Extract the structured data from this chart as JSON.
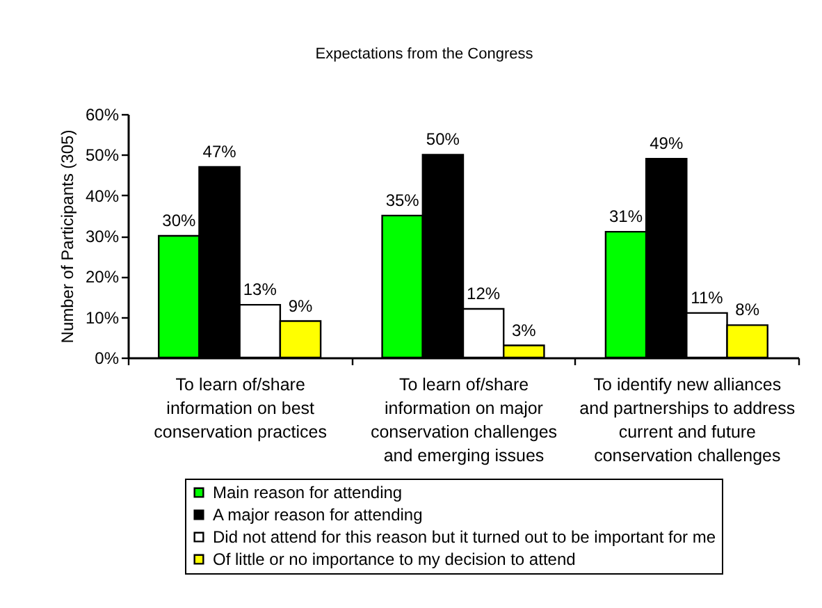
{
  "chart_data": {
    "type": "bar",
    "title": "Expectations from the Congress",
    "ylabel": "Number of Participants (305)",
    "categories": [
      "To learn of/share\ninformation on best\nconservation practices",
      "To learn of/share\ninformation on major\nconservation challenges\nand emerging issues",
      "To identify new alliances\nand partnerships to address\ncurrent and future\nconservation challenges"
    ],
    "series": [
      {
        "name": "Main reason for attending",
        "color": "#00ff00",
        "values": [
          30,
          35,
          31
        ],
        "value_labels": [
          "30%",
          "35%",
          "31%"
        ]
      },
      {
        "name": "A major reason for attending",
        "color": "#000000",
        "values": [
          47,
          50,
          49
        ],
        "value_labels": [
          "47%",
          "50%",
          "49%"
        ]
      },
      {
        "name": "Did not attend for this reason but it turned out to be important for me",
        "color": "#ffffff",
        "values": [
          13,
          12,
          11
        ],
        "value_labels": [
          "13%",
          "12%",
          "11%"
        ]
      },
      {
        "name": "Of little or no importance to my decision to attend",
        "color": "#ffff00",
        "values": [
          9,
          3,
          8
        ],
        "value_labels": [
          "9%",
          "3%",
          "8%"
        ]
      }
    ],
    "ylim": [
      0,
      60
    ],
    "yticks": [
      {
        "value": 0,
        "label": "0%"
      },
      {
        "value": 10,
        "label": "10%"
      },
      {
        "value": 20,
        "label": "20%"
      },
      {
        "value": 30,
        "label": "30%"
      },
      {
        "value": 40,
        "label": "40%"
      },
      {
        "value": 50,
        "label": "50%"
      },
      {
        "value": 60,
        "label": "60%"
      }
    ],
    "legend": "bottom"
  }
}
